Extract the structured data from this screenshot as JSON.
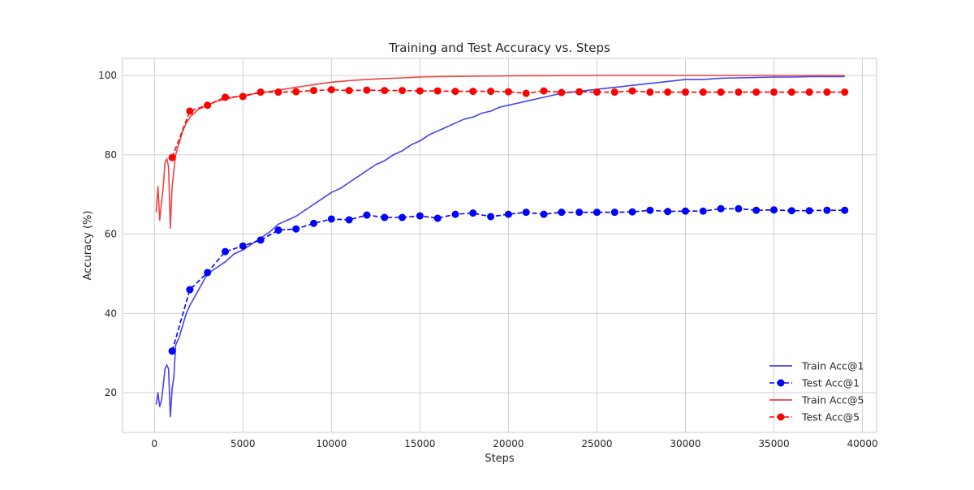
{
  "chart_data": {
    "type": "line",
    "title": "Training and Test Accuracy vs. Steps",
    "xlabel": "Steps",
    "ylabel": "Accuracy (%)",
    "xlim": [
      -1800,
      40800
    ],
    "ylim": [
      10,
      104.3
    ],
    "xticks": [
      0,
      5000,
      10000,
      15000,
      20000,
      25000,
      30000,
      35000,
      40000
    ],
    "xtick_labels": [
      "0",
      "5000",
      "10000",
      "15000",
      "20000",
      "25000",
      "30000",
      "35000",
      "40000"
    ],
    "yticks": [
      20,
      40,
      60,
      80,
      100
    ],
    "ytick_labels": [
      "20",
      "40",
      "60",
      "80",
      "100"
    ],
    "grid": true,
    "legend_position": "bottom-right",
    "series": [
      {
        "name": "Train Acc@1",
        "color": "#2222ee",
        "style": "solid",
        "markers": false,
        "x": [
          100,
          200,
          300,
          400,
          500,
          600,
          700,
          800,
          900,
          1000,
          1100,
          1200,
          1400,
          1600,
          1800,
          2000,
          2500,
          3000,
          3500,
          4000,
          4500,
          5000,
          5500,
          6000,
          6500,
          7000,
          7500,
          8000,
          8500,
          9000,
          9500,
          10000,
          10500,
          11000,
          11500,
          12000,
          12500,
          13000,
          13500,
          14000,
          14500,
          15000,
          15500,
          16000,
          16500,
          17000,
          17500,
          18000,
          18500,
          19000,
          19500,
          20000,
          21000,
          22000,
          23000,
          24000,
          25000,
          26000,
          27000,
          28000,
          29000,
          30000,
          31000,
          32000,
          33000,
          34000,
          35000,
          36000,
          37000,
          38000,
          39000
        ],
        "y": [
          17,
          20,
          16.5,
          18,
          22,
          26,
          27,
          26,
          14,
          21,
          24,
          32,
          34,
          37,
          40,
          42,
          46,
          50,
          51.5,
          53,
          55,
          56,
          57.5,
          59,
          60.5,
          62.5,
          63.5,
          64.5,
          66,
          67.5,
          69,
          70.5,
          71.5,
          73,
          74.5,
          76,
          77.5,
          78.5,
          80,
          81,
          82.5,
          83.5,
          85,
          86,
          87,
          88,
          89,
          89.5,
          90.5,
          91,
          92,
          92.5,
          93.5,
          94.5,
          95.5,
          96,
          96.5,
          97,
          97.5,
          98,
          98.5,
          99,
          99,
          99.3,
          99.4,
          99.5,
          99.6,
          99.6,
          99.7,
          99.7,
          99.7
        ]
      },
      {
        "name": "Test Acc@1",
        "color": "#0000ff",
        "style": "dashed",
        "markers": true,
        "x": [
          1000,
          2000,
          3000,
          4000,
          5000,
          6000,
          7000,
          8000,
          9000,
          10000,
          11000,
          12000,
          13000,
          14000,
          15000,
          16000,
          17000,
          18000,
          19000,
          20000,
          21000,
          22000,
          23000,
          24000,
          25000,
          26000,
          27000,
          28000,
          29000,
          30000,
          31000,
          32000,
          33000,
          34000,
          35000,
          36000,
          37000,
          38000,
          39000
        ],
        "y": [
          30.5,
          46,
          50.3,
          55.6,
          57,
          58.5,
          61,
          61.3,
          62.7,
          63.8,
          63.6,
          64.8,
          64.2,
          64.2,
          64.6,
          64,
          65,
          65.3,
          64.4,
          65,
          65.5,
          65,
          65.5,
          65.5,
          65.5,
          65.5,
          65.6,
          66,
          65.7,
          65.8,
          65.8,
          66.4,
          66.4,
          66,
          66.1,
          65.9,
          65.9,
          66,
          66
        ]
      },
      {
        "name": "Train Acc@5",
        "color": "#ee2222",
        "style": "solid",
        "markers": false,
        "x": [
          100,
          200,
          300,
          400,
          500,
          600,
          700,
          800,
          900,
          1000,
          1100,
          1200,
          1400,
          1600,
          1800,
          2000,
          2500,
          3000,
          3500,
          4000,
          4500,
          5000,
          6000,
          7000,
          8000,
          9000,
          10000,
          11000,
          12000,
          13000,
          14000,
          15000,
          16000,
          18000,
          20000,
          22000,
          25000,
          28000,
          31000,
          34000,
          37000,
          39000
        ],
        "y": [
          65.5,
          72,
          63.5,
          68,
          72,
          78,
          79,
          77,
          61.5,
          72,
          76,
          80,
          83,
          86,
          88,
          89.5,
          91.5,
          92.5,
          93.5,
          94,
          94.5,
          95,
          95.6,
          96.3,
          97,
          97.7,
          98.3,
          98.7,
          99,
          99.2,
          99.4,
          99.6,
          99.7,
          99.8,
          99.9,
          99.95,
          100,
          100,
          100,
          100,
          100,
          100
        ]
      },
      {
        "name": "Test Acc@5",
        "color": "#ff0000",
        "style": "dashed",
        "markers": true,
        "x": [
          1000,
          2000,
          3000,
          4000,
          5000,
          6000,
          7000,
          8000,
          9000,
          10000,
          11000,
          12000,
          13000,
          14000,
          15000,
          16000,
          17000,
          18000,
          19000,
          20000,
          21000,
          22000,
          23000,
          24000,
          25000,
          26000,
          27000,
          28000,
          29000,
          30000,
          31000,
          32000,
          33000,
          34000,
          35000,
          36000,
          37000,
          38000,
          39000
        ],
        "y": [
          79.3,
          91,
          92.5,
          94.5,
          94.7,
          95.8,
          95.8,
          95.9,
          96.2,
          96.4,
          96.2,
          96.3,
          96.2,
          96.2,
          96.1,
          96.1,
          96,
          96,
          96,
          95.9,
          95.5,
          96.1,
          95.7,
          95.9,
          95.8,
          95.8,
          96.1,
          95.8,
          95.8,
          95.8,
          95.8,
          95.8,
          95.8,
          95.8,
          95.8,
          95.8,
          95.8,
          95.8,
          95.8
        ]
      }
    ]
  }
}
